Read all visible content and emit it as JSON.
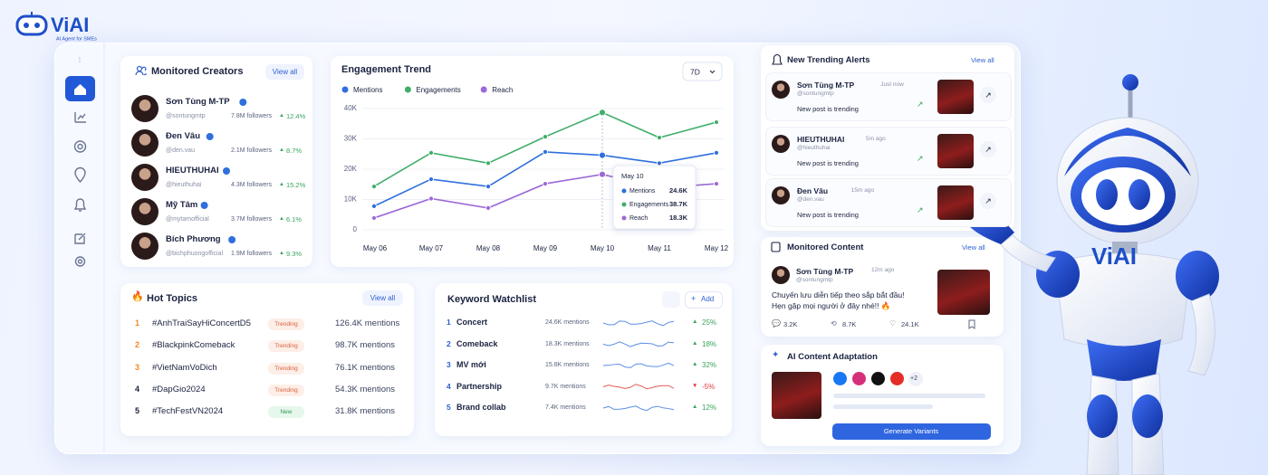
{
  "logo": {
    "name": "ViAI",
    "tagline": "AI Agent for SMEs"
  },
  "creators": {
    "title": "Monitored Creators",
    "action": "View all",
    "items": [
      {
        "name": "Sơn Tùng M-TP",
        "handle": "@sontungmtp",
        "followers": "7.8M followers",
        "growth": "12.4%"
      },
      {
        "name": "Đen Vâu",
        "handle": "@den.vau",
        "followers": "2.1M followers",
        "growth": "8.7%"
      },
      {
        "name": "HIEUTHUHAI",
        "handle": "@hieuthuhai",
        "followers": "4.3M followers",
        "growth": "15.2%"
      },
      {
        "name": "Mỹ Tâm",
        "handle": "@mytamofficial",
        "followers": "3.7M followers",
        "growth": "6.1%"
      },
      {
        "name": "Bích Phương",
        "handle": "@bichphuongofficial",
        "followers": "1.9M followers",
        "growth": "9.3%"
      }
    ]
  },
  "chart_data": {
    "type": "line",
    "title": "Engagement Trend",
    "period": "7D",
    "categories": [
      "May 06",
      "May 07",
      "May 08",
      "May 09",
      "May 10",
      "May 11",
      "May 12"
    ],
    "series": [
      {
        "name": "Mentions",
        "color": "#2f6fde",
        "values": [
          7800,
          16700,
          14300,
          25700,
          24600,
          22000,
          25400
        ],
        "value_labels": [
          null,
          null,
          null,
          null,
          "24.6K",
          null,
          null
        ]
      },
      {
        "name": "Engagements",
        "color": "#3fae6a",
        "values": [
          14300,
          25400,
          22000,
          30700,
          38700,
          30400,
          35500
        ],
        "value_labels": [
          null,
          null,
          null,
          null,
          "38.7K",
          null,
          null
        ]
      },
      {
        "name": "Reach",
        "color": "#9b6ad6",
        "values": [
          3900,
          10300,
          7200,
          15200,
          18300,
          13800,
          15200
        ],
        "value_labels": [
          null,
          null,
          null,
          null,
          "18.3K",
          null,
          null
        ]
      }
    ],
    "ylim": [
      0,
      40000
    ],
    "yticks": [
      0,
      {
        "value": 10000,
        "label": "10K"
      },
      {
        "value": 20000,
        "label": "20K"
      },
      {
        "value": 30000,
        "label": "30K"
      },
      {
        "value": 40000,
        "label": "40K"
      }
    ],
    "grid": true
  },
  "hot_topics": {
    "title": "Hot Topics",
    "action": "View all",
    "items": [
      {
        "rank": "1",
        "tag": "#AnhTraiSayHiConcertD5",
        "status": "Trending",
        "mentions": "126.4K mentions"
      },
      {
        "rank": "2",
        "tag": "#BlackpinkComeback",
        "status": "Trending",
        "mentions": "98.7K mentions"
      },
      {
        "rank": "3",
        "tag": "#VietNamVoDich",
        "status": "Trending",
        "mentions": "76.1K mentions"
      },
      {
        "rank": "4",
        "tag": "#DapGio2024",
        "status": "Trending",
        "mentions": "54.3K mentions"
      },
      {
        "rank": "5",
        "tag": "#TechFestVN2024",
        "status": "New",
        "mentions": "31.8K mentions"
      }
    ]
  },
  "keywords": {
    "title": "Keyword Watchlist",
    "action": "Add",
    "items": [
      {
        "rank": "1",
        "keyword": "Concert",
        "mentions": "24.6K mentions",
        "change": "25%"
      },
      {
        "rank": "2",
        "keyword": "Comeback",
        "mentions": "18.3K mentions",
        "change": "18%"
      },
      {
        "rank": "3",
        "keyword": "MV mới",
        "mentions": "15.8K mentions",
        "change": "32%"
      },
      {
        "rank": "4",
        "keyword": "Partnership",
        "mentions": "9.7K mentions",
        "change": "-5%"
      },
      {
        "rank": "5",
        "keyword": "Brand collab",
        "mentions": "7.4K mentions",
        "change": "12%"
      }
    ]
  },
  "alerts": {
    "title": "New Trending Alerts",
    "action": "View all",
    "items": [
      {
        "name": "Sơn Tùng M-TP",
        "handle": "@sontungmtp",
        "time": "Just now",
        "text": "New post is trending"
      },
      {
        "name": "HIEUTHUHAI",
        "handle": "@hieuthuhai",
        "time": "5m ago",
        "text": "New post is trending"
      },
      {
        "name": "Đen Vâu",
        "handle": "@den.vau",
        "time": "15m ago",
        "text": "New post is trending"
      }
    ]
  },
  "monitored_content": {
    "title": "Monitored Content",
    "action": "View all",
    "post": {
      "name": "Sơn Tùng M-TP",
      "handle": "@sontungmtp",
      "time": "12m ago",
      "lines": [
        "Chuyến lưu diễn tiếp theo sắp bắt đầu!",
        "Hẹn gặp mọi người ở đây nhé!! 🔥"
      ],
      "stats": [
        "3.2K",
        "8.7K",
        "24.1K"
      ]
    }
  },
  "adaptation": {
    "title": "AI Content Adaptation",
    "more": "+2",
    "button": "Generate Variants"
  },
  "robot": {
    "label": "ViAI"
  }
}
